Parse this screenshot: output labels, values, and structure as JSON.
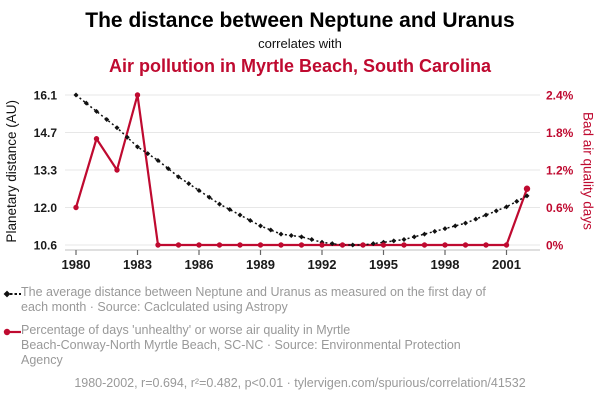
{
  "header": {
    "title": "The distance between Neptune and Uranus",
    "connector": "correlates with",
    "subtitle": "Air pollution in Myrtle Beach, South Carolina"
  },
  "colors": {
    "red": "#bf0a30",
    "black": "#111111",
    "gray_text": "#999999",
    "grid": "#e7e7e7",
    "axis_line": "#cccccc",
    "tick_mark": "#666666"
  },
  "chart_data": {
    "type": "line",
    "x": [
      1980,
      1981,
      1982,
      1983,
      1984,
      1985,
      1986,
      1987,
      1988,
      1989,
      1990,
      1991,
      1992,
      1993,
      1994,
      1995,
      1996,
      1997,
      1998,
      1999,
      2000,
      2001,
      2002
    ],
    "x_ticks": [
      1980,
      1983,
      1986,
      1989,
      1992,
      1995,
      1998,
      2001
    ],
    "y_left": {
      "label": "Planetary distance (AU)",
      "min": 10.6,
      "max": 16.1,
      "ticks": [
        "16.1",
        "14.7",
        "13.3",
        "12.0",
        "10.6"
      ]
    },
    "y_right": {
      "label": "Bad air quality days",
      "min": 0,
      "max": 2.4,
      "ticks": [
        "2.4%",
        "1.8%",
        "1.2%",
        "0.6%",
        "0%"
      ]
    },
    "grid": "horizontal",
    "legend_position": "below",
    "series": [
      {
        "name": "Average distance between Neptune and Uranus (AU)",
        "axis": "left",
        "style": "dashed-diamond",
        "color": "#111111",
        "values": [
          16.1,
          15.5,
          14.9,
          14.2,
          13.7,
          13.1,
          12.6,
          12.1,
          11.7,
          11.3,
          11.0,
          10.9,
          10.7,
          10.6,
          10.6,
          10.7,
          10.8,
          11.0,
          11.2,
          11.4,
          11.7,
          12.0,
          12.4
        ]
      },
      {
        "name": "Bad air quality days (%)",
        "axis": "right",
        "style": "solid-circle",
        "color": "#bf0a30",
        "values": [
          0.6,
          1.7,
          1.2,
          2.4,
          0,
          0,
          0,
          0,
          0,
          0,
          0,
          0,
          0,
          0,
          0,
          0,
          0,
          0,
          0,
          0,
          0,
          0,
          0.9
        ]
      }
    ]
  },
  "legend": [
    {
      "marker": "black-diamond-dashed",
      "text": "The average distance between Neptune and Uranus as measured on the first day of\neach month · Source: Caclculated using Astropy"
    },
    {
      "marker": "red-circle-line",
      "text": "Percentage of days 'unhealthy' or worse air quality in Myrtle\nBeach-Conway-North Myrtle Beach, SC-NC · Source: Environmental Protection\nAgency"
    }
  ],
  "footer": {
    "citation": "1980-2002, r=0.694, r²=0.482, p<0.01 · tylervigen.com/spurious/correlation/41532"
  }
}
